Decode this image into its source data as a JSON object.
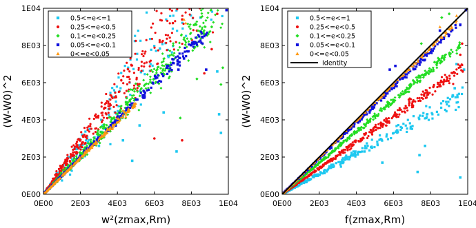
{
  "chart_data": [
    {
      "type": "scatter",
      "title": "",
      "xlabel": "w²(zmax,Rm)",
      "ylabel": "(W-W0)^2",
      "xlim": [
        0,
        10000
      ],
      "ylim": [
        0,
        10000
      ],
      "xticks": [
        "0E00",
        "2E03",
        "4E03",
        "6E03",
        "8E03",
        "1E04"
      ],
      "yticks": [
        "0E00",
        "2E03",
        "4E03",
        "6E03",
        "8E03",
        "1E04"
      ],
      "legend_position": "top-left",
      "series": [
        {
          "name": "0.5<=e<=1",
          "color": "#1ec8f0",
          "marker": "square",
          "slope": 1.25,
          "spread": 0.55,
          "xmax": 9800,
          "n": 200,
          "points": [
            [
              700,
              1100
            ],
            [
              2100,
              3200
            ],
            [
              3000,
              2600
            ],
            [
              4300,
              2900
            ],
            [
              4800,
              1800
            ],
            [
              5200,
              3700
            ],
            [
              7200,
              2300
            ],
            [
              6500,
              4400
            ],
            [
              9400,
              6600
            ],
            [
              9500,
              4300
            ],
            [
              8500,
              9500
            ],
            [
              9600,
              3300
            ]
          ]
        },
        {
          "name": "0.25<=e<0.5",
          "color": "#ee1111",
          "marker": "circle",
          "slope": 1.35,
          "spread": 0.35,
          "xmax": 9900,
          "n": 420,
          "points": [
            [
              7500,
              9400
            ],
            [
              7000,
              9200
            ],
            [
              8300,
              8800
            ],
            [
              9100,
              7800
            ],
            [
              9400,
              9700
            ],
            [
              6000,
              3000
            ],
            [
              7500,
              2900
            ],
            [
              8700,
              6500
            ]
          ]
        },
        {
          "name": "0.1<=e<0.25",
          "color": "#22dd22",
          "marker": "diamond",
          "slope": 1.05,
          "spread": 0.22,
          "xmax": 9900,
          "n": 520,
          "points": [
            [
              9100,
              9000
            ],
            [
              9700,
              6800
            ],
            [
              8300,
              6200
            ],
            [
              7400,
              4100
            ],
            [
              9600,
              5900
            ]
          ]
        },
        {
          "name": "0.05<=e<0.1",
          "color": "#1111dd",
          "marker": "square",
          "slope": 1.0,
          "spread": 0.09,
          "xmax": 9000,
          "n": 320,
          "points": [
            [
              9900,
              9900
            ],
            [
              7600,
              7300
            ],
            [
              8800,
              6700
            ],
            [
              7300,
              6700
            ]
          ]
        },
        {
          "name": "0<=e<0.05",
          "color": "#ff9911",
          "marker": "triangle",
          "slope": 0.98,
          "spread": 0.06,
          "xmax": 5000,
          "n": 260,
          "points": [
            [
              7600,
              9400
            ],
            [
              7700,
              9200
            ],
            [
              4300,
              4500
            ]
          ]
        }
      ]
    },
    {
      "type": "scatter",
      "title": "",
      "xlabel": "f(zmax,Rm)",
      "ylabel": "(W-W0)^2",
      "xlim": [
        0,
        10000
      ],
      "ylim": [
        0,
        10000
      ],
      "xticks": [
        "0E00",
        "2E03",
        "4E03",
        "6E03",
        "8E03",
        "1E04"
      ],
      "yticks": [
        "0E00",
        "2E03",
        "4E03",
        "6E03",
        "8E03",
        "1E04"
      ],
      "legend_position": "top-left",
      "reference_line": {
        "name": "Identity",
        "color": "#000000",
        "from": [
          0,
          0
        ],
        "to": [
          10000,
          10000
        ]
      },
      "series": [
        {
          "name": "0.5<=e<=1",
          "color": "#1ec8f0",
          "marker": "square",
          "slope": 0.55,
          "spread": 0.17,
          "xmax": 9800,
          "n": 260,
          "points": [
            [
              7400,
              2100
            ],
            [
              7700,
              2600
            ],
            [
              7300,
              1200
            ],
            [
              9600,
              900
            ],
            [
              9800,
              6700
            ],
            [
              9400,
              7000
            ],
            [
              9300,
              5700
            ],
            [
              9200,
              5300
            ],
            [
              5400,
              1700
            ]
          ]
        },
        {
          "name": "0.25<=e<0.5",
          "color": "#ee1111",
          "marker": "circle",
          "slope": 0.7,
          "spread": 0.1,
          "xmax": 9800,
          "n": 420,
          "points": [
            [
              9700,
              8100
            ],
            [
              9600,
              7500
            ]
          ]
        },
        {
          "name": "0.1<=e<0.25",
          "color": "#22dd22",
          "marker": "diamond",
          "slope": 0.84,
          "spread": 0.06,
          "xmax": 9700,
          "n": 450,
          "points": [
            [
              7500,
              8100
            ],
            [
              8600,
              9500
            ],
            [
              9000,
              9700
            ]
          ]
        },
        {
          "name": "0.05<=e<0.1",
          "color": "#1111dd",
          "marker": "square",
          "slope": 0.96,
          "spread": 0.04,
          "xmax": 9700,
          "n": 300,
          "points": [
            [
              5800,
              6700
            ],
            [
              8500,
              8800
            ],
            [
              9900,
              9900
            ],
            [
              6100,
              6900
            ]
          ]
        },
        {
          "name": "0<=e<0.05",
          "color": "#ff9911",
          "marker": "triangle",
          "slope": 0.985,
          "spread": 0.02,
          "xmax": 9400,
          "n": 220,
          "points": [
            [
              8500,
              9000
            ],
            [
              9400,
              9600
            ]
          ]
        }
      ]
    }
  ]
}
